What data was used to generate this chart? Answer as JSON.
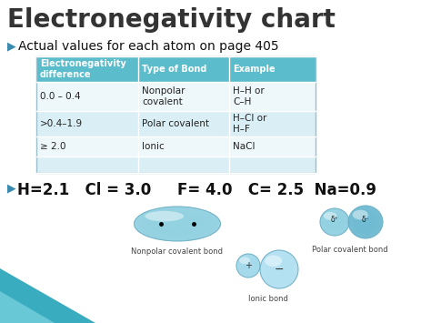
{
  "title": "Electronegativity chart",
  "subtitle": "Actual values for each atom on page 405",
  "bullet_char": "▶",
  "table_headers": [
    "Electronegativity\ndifference",
    "Type of Bond",
    "Example"
  ],
  "table_rows": [
    [
      "0.0 – 0.4",
      "Nonpolar\ncovalent",
      "H–H or\nC–H"
    ],
    [
      ">0.4–1.9",
      "Polar covalent",
      "H–Cl or\nH–F"
    ],
    [
      "≥ 2.0",
      "Ionic",
      "NaCl"
    ]
  ],
  "header_color": "#5bbccc",
  "row_color_even": "#daeef5",
  "row_color_odd": "#eef7fa",
  "title_color": "#333333",
  "bullet_color": "#3a8ab0",
  "bg_color": "#ffffff",
  "bond_label_nonpolar": "Nonpolar covalent bond",
  "bond_label_polar": "Polar covalent bond",
  "bond_label_ionic": "Ionic bond",
  "blob_color": "#8ecfdf",
  "blob_edge": "#6aaec4",
  "teal_tri_color": "#3aacbf"
}
